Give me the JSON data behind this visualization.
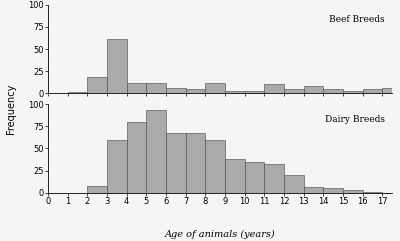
{
  "beef_values": [
    2,
    19,
    62,
    12,
    12,
    6,
    5,
    12,
    3,
    3,
    11,
    5,
    9,
    5,
    3,
    5,
    6
  ],
  "dairy_values": [
    0,
    8,
    60,
    80,
    93,
    68,
    68,
    60,
    38,
    35,
    33,
    20,
    7,
    5,
    3,
    1,
    0
  ],
  "ages": [
    1,
    2,
    3,
    4,
    5,
    6,
    7,
    8,
    9,
    10,
    11,
    12,
    13,
    14,
    15,
    16,
    17
  ],
  "bar_color": "#aaaaaa",
  "bar_edgecolor": "#444444",
  "ylim": [
    0,
    100
  ],
  "yticks": [
    0,
    25,
    50,
    75,
    100
  ],
  "xticks": [
    0,
    1,
    2,
    3,
    4,
    5,
    6,
    7,
    8,
    9,
    10,
    11,
    12,
    13,
    14,
    15,
    16,
    17
  ],
  "xlim": [
    0,
    17.5
  ],
  "xlabel": "Age of animals (years)",
  "ylabel": "Frequency",
  "label_beef": "Beef Breeds",
  "label_dairy": "Dairy Breeds",
  "background_color": "#f5f5f5"
}
